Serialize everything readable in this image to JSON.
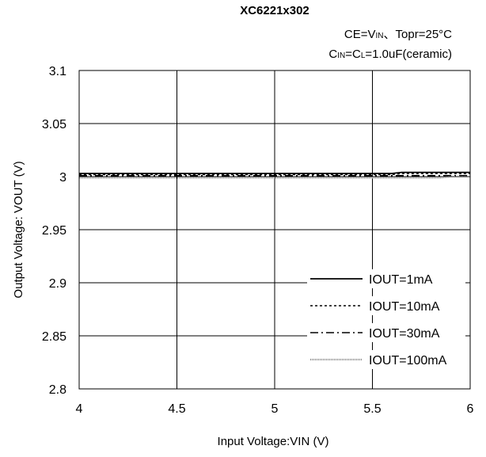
{
  "chart_data": {
    "type": "line",
    "title": "XC6221x302",
    "conditions": {
      "line1": {
        "prefix": "CE=V",
        "sub": "IN",
        "suffix": "、Topr=25°C"
      },
      "line2": {
        "p1": "C",
        "s1": "IN",
        "p2": "=C",
        "s2": "L",
        "p3": "=1.0uF(ceramic)"
      }
    },
    "xlabel": "Input Voltage:VIN (V)",
    "ylabel": "Output Voltage: VOUT (V)",
    "xlim": [
      4,
      6
    ],
    "ylim": [
      2.8,
      3.1
    ],
    "x_ticks": [
      4,
      4.5,
      5,
      5.5,
      6
    ],
    "x_tick_labels": [
      "4",
      "4.5",
      "5",
      "5.5",
      "6"
    ],
    "y_ticks": [
      2.8,
      2.85,
      2.9,
      2.95,
      3.0,
      3.05,
      3.1
    ],
    "y_tick_labels": [
      "2.8",
      "2.85",
      "2.9",
      "2.95",
      "3",
      "3.05",
      "3.1"
    ],
    "grid": true,
    "legend_position": "bottom-right",
    "series": [
      {
        "name": "IOUT=1mA",
        "style": "solid",
        "color": "#000000",
        "x": [
          4,
          4.5,
          5,
          5.5,
          5.6,
          5.65,
          6
        ],
        "y": [
          3.003,
          3.003,
          3.003,
          3.003,
          3.003,
          3.004,
          3.004
        ]
      },
      {
        "name": "IOUT=10mA",
        "style": "dotted",
        "color": "#000000",
        "x": [
          4,
          4.5,
          5,
          5.5,
          5.6,
          5.65,
          6
        ],
        "y": [
          3.002,
          3.002,
          3.002,
          3.002,
          3.002,
          3.003,
          3.003
        ]
      },
      {
        "name": "IOUT=30mA",
        "style": "dashdot",
        "color": "#000000",
        "x": [
          4,
          4.5,
          5,
          5.5,
          6
        ],
        "y": [
          3.001,
          3.001,
          3.001,
          3.001,
          3.001
        ]
      },
      {
        "name": "IOUT=100mA",
        "style": "gray-dotted",
        "color": "#8c8c8c",
        "x": [
          4,
          4.5,
          5,
          5.5,
          5.85,
          5.9,
          6
        ],
        "y": [
          2.999,
          2.999,
          2.999,
          2.999,
          2.999,
          3.0,
          3.0
        ]
      }
    ]
  }
}
